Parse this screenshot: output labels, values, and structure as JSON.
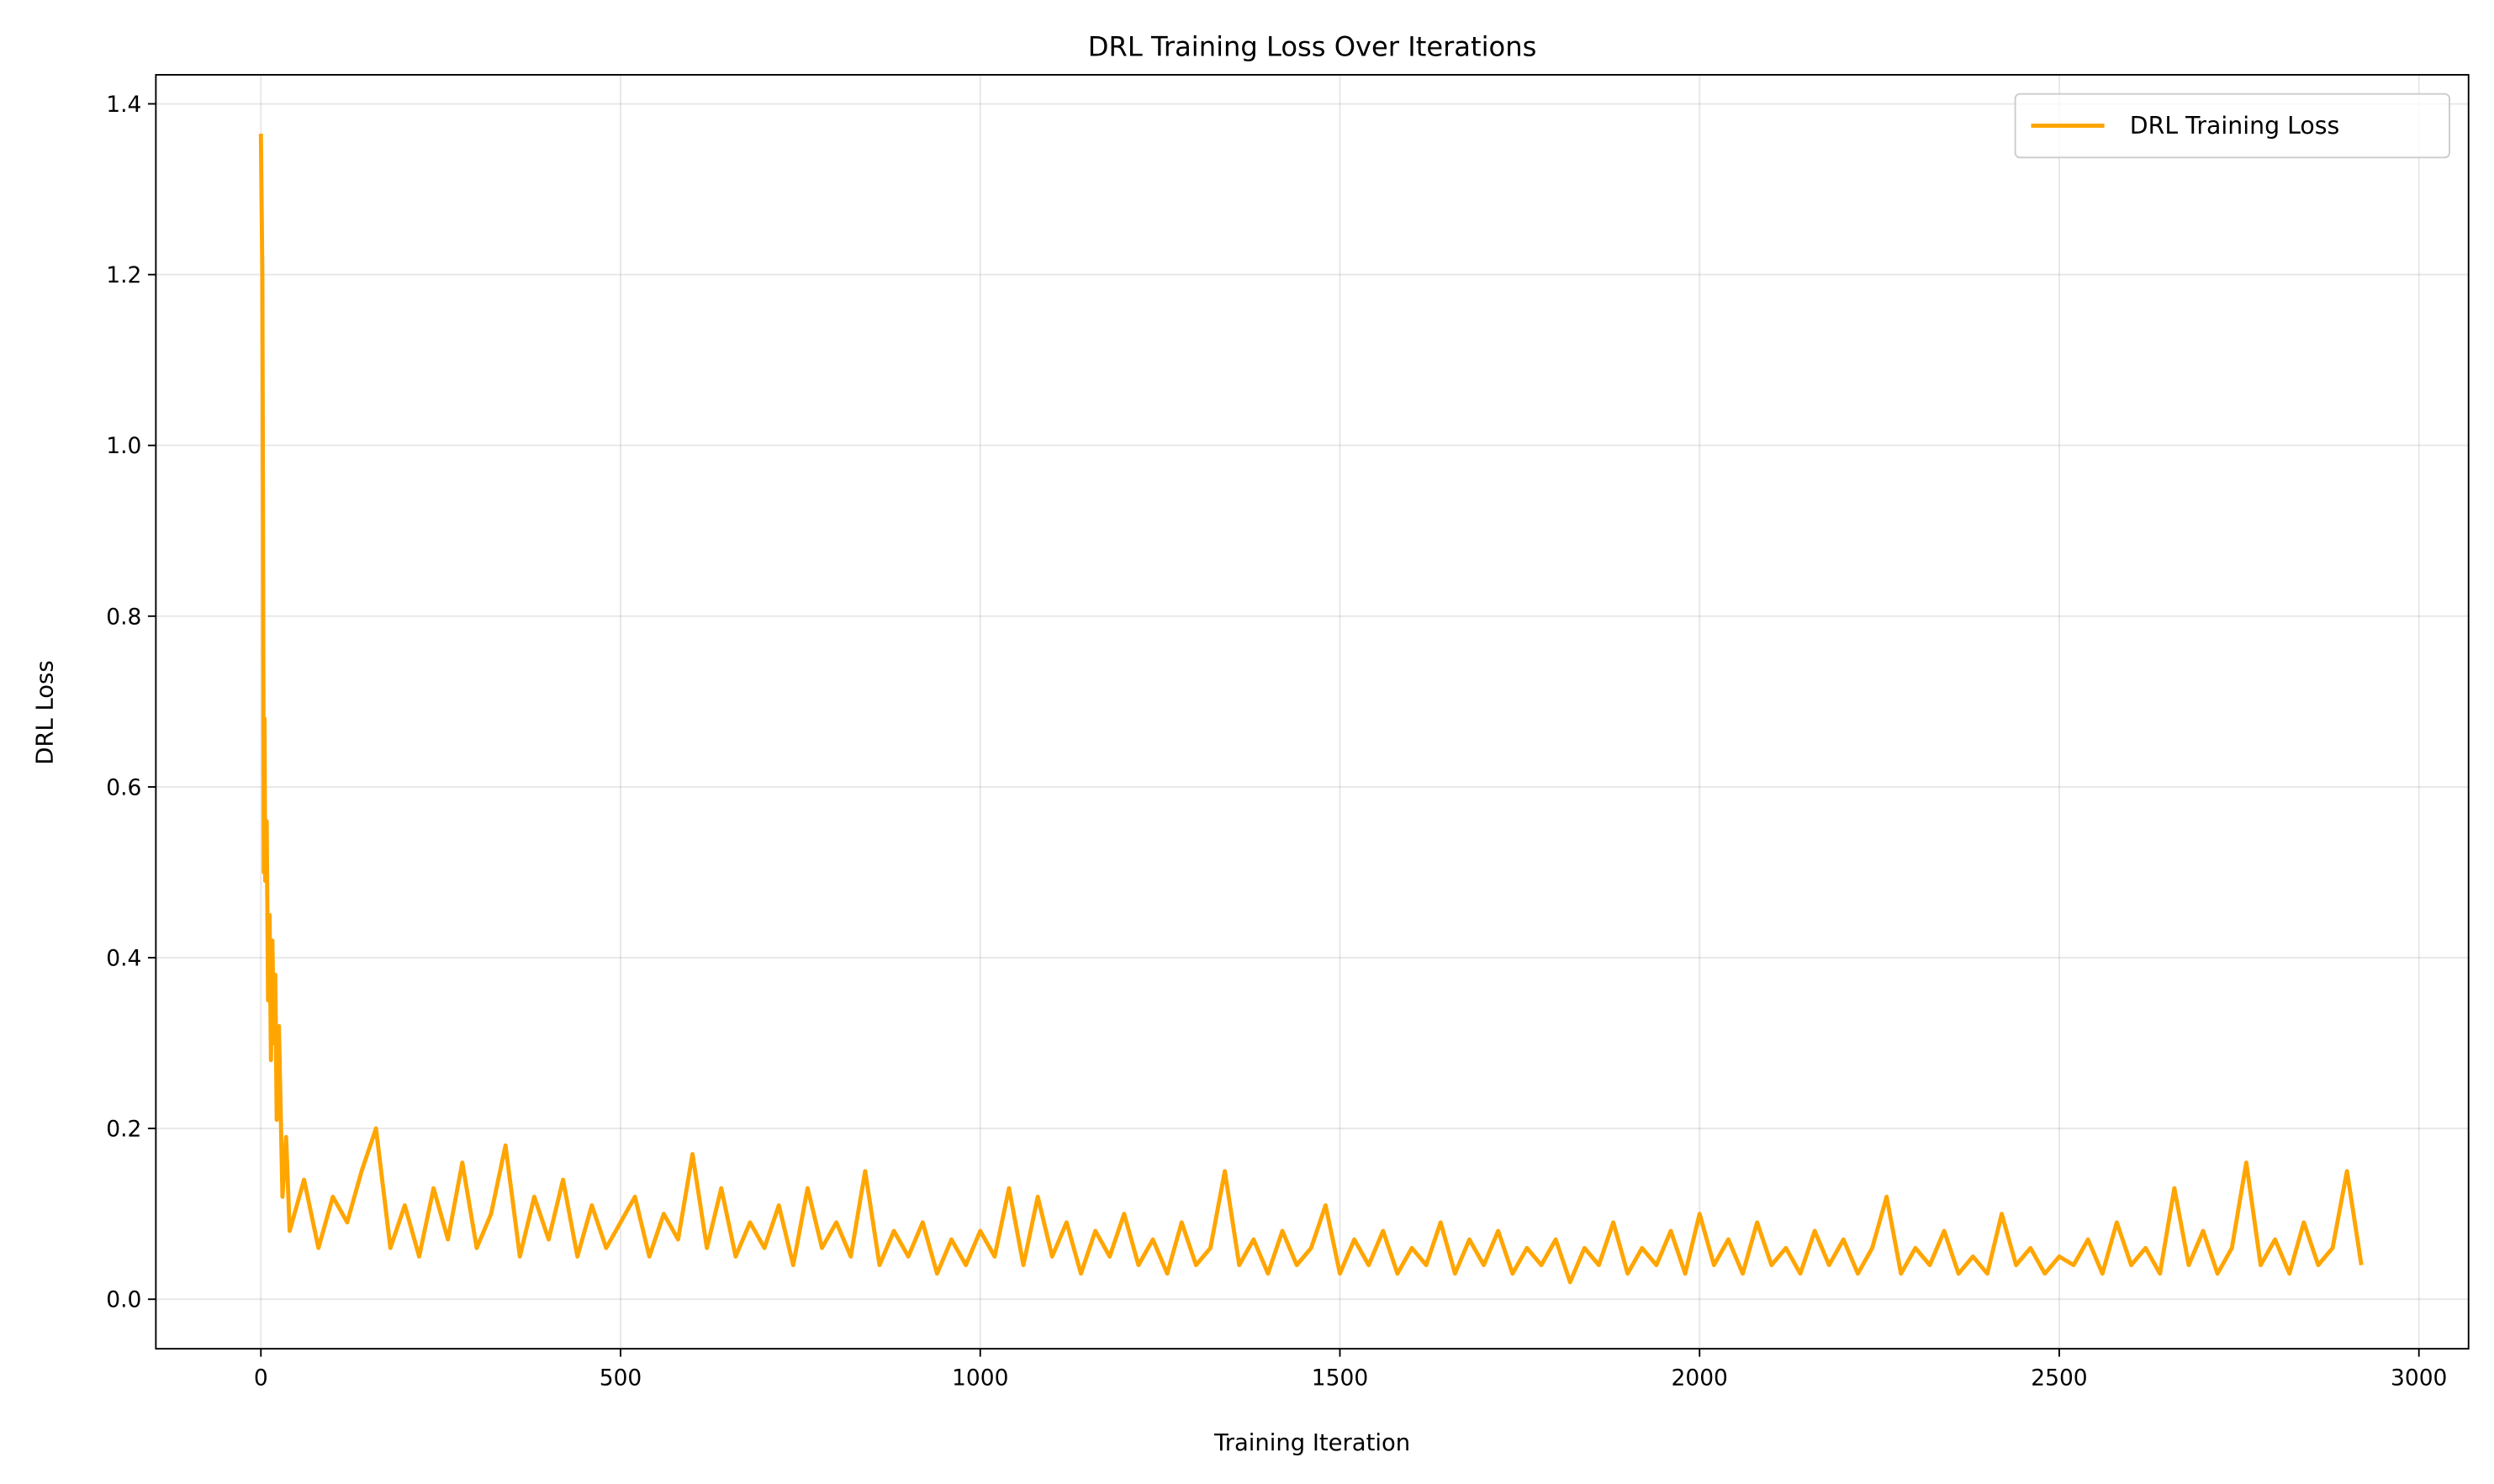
{
  "chart_data": {
    "type": "line",
    "title": "DRL Training Loss Over Iterations",
    "xlabel": "Training Iteration",
    "ylabel": "DRL Loss",
    "x": [
      0,
      2,
      3,
      4,
      5,
      6,
      8,
      10,
      12,
      14,
      16,
      18,
      20,
      22,
      25,
      28,
      30,
      35,
      40,
      60,
      80,
      100,
      120,
      140,
      160,
      180,
      200,
      220,
      240,
      260,
      280,
      300,
      320,
      340,
      360,
      380,
      400,
      420,
      440,
      460,
      480,
      500,
      520,
      540,
      560,
      580,
      600,
      620,
      640,
      660,
      680,
      700,
      720,
      740,
      760,
      780,
      800,
      820,
      840,
      860,
      880,
      900,
      920,
      940,
      960,
      980,
      1000,
      1020,
      1040,
      1060,
      1080,
      1100,
      1120,
      1140,
      1160,
      1180,
      1200,
      1220,
      1240,
      1260,
      1280,
      1300,
      1320,
      1340,
      1360,
      1380,
      1400,
      1420,
      1440,
      1460,
      1480,
      1500,
      1520,
      1540,
      1560,
      1580,
      1600,
      1620,
      1640,
      1660,
      1680,
      1700,
      1720,
      1740,
      1760,
      1780,
      1800,
      1820,
      1840,
      1860,
      1880,
      1900,
      1920,
      1940,
      1960,
      1980,
      2000,
      2020,
      2040,
      2060,
      2080,
      2100,
      2120,
      2140,
      2160,
      2180,
      2200,
      2220,
      2240,
      2260,
      2280,
      2300,
      2320,
      2340,
      2360,
      2380,
      2400,
      2420,
      2440,
      2460,
      2480,
      2500,
      2520,
      2540,
      2560,
      2580,
      2600,
      2620,
      2640,
      2660,
      2680,
      2700,
      2720,
      2740,
      2760,
      2780,
      2800,
      2820,
      2840,
      2860,
      2880,
      2900,
      2920
    ],
    "series": [
      {
        "name": "DRL Training Loss",
        "color": "#ffa500",
        "values": [
          1.365,
          1.2,
          0.9,
          0.5,
          0.68,
          0.49,
          0.56,
          0.35,
          0.45,
          0.28,
          0.42,
          0.3,
          0.38,
          0.21,
          0.32,
          0.2,
          0.12,
          0.19,
          0.08,
          0.14,
          0.06,
          0.12,
          0.09,
          0.15,
          0.2,
          0.06,
          0.11,
          0.05,
          0.13,
          0.07,
          0.16,
          0.06,
          0.1,
          0.18,
          0.05,
          0.12,
          0.07,
          0.14,
          0.05,
          0.11,
          0.06,
          0.09,
          0.12,
          0.05,
          0.1,
          0.07,
          0.17,
          0.06,
          0.13,
          0.05,
          0.09,
          0.06,
          0.11,
          0.04,
          0.13,
          0.06,
          0.09,
          0.05,
          0.15,
          0.04,
          0.08,
          0.05,
          0.09,
          0.03,
          0.07,
          0.04,
          0.08,
          0.05,
          0.13,
          0.04,
          0.12,
          0.05,
          0.09,
          0.03,
          0.08,
          0.05,
          0.1,
          0.04,
          0.07,
          0.03,
          0.09,
          0.04,
          0.06,
          0.15,
          0.04,
          0.07,
          0.03,
          0.08,
          0.04,
          0.06,
          0.11,
          0.03,
          0.07,
          0.04,
          0.08,
          0.03,
          0.06,
          0.04,
          0.09,
          0.03,
          0.07,
          0.04,
          0.08,
          0.03,
          0.06,
          0.04,
          0.07,
          0.02,
          0.06,
          0.04,
          0.09,
          0.03,
          0.06,
          0.04,
          0.08,
          0.03,
          0.1,
          0.04,
          0.07,
          0.03,
          0.09,
          0.04,
          0.06,
          0.03,
          0.08,
          0.04,
          0.07,
          0.03,
          0.06,
          0.12,
          0.03,
          0.06,
          0.04,
          0.08,
          0.03,
          0.05,
          0.03,
          0.1,
          0.04,
          0.06,
          0.03,
          0.05,
          0.04,
          0.07,
          0.03,
          0.09,
          0.04,
          0.06,
          0.03,
          0.13,
          0.04,
          0.08,
          0.03,
          0.06,
          0.16,
          0.04,
          0.07,
          0.03,
          0.09,
          0.04,
          0.06,
          0.15,
          0.04
        ]
      }
    ],
    "xlim": [
      -146,
      3069
    ],
    "ylim": [
      -0.058,
      1.434
    ],
    "xticks": [
      0,
      500,
      1000,
      1500,
      2000,
      2500,
      3000
    ],
    "yticks": [
      {
        "value": 0,
        "label": "0.0"
      },
      0.2,
      0.4,
      0.6,
      0.8,
      {
        "value": 1,
        "label": "1.0"
      },
      1.2,
      1.4
    ],
    "grid": true,
    "legend": "upper right"
  }
}
